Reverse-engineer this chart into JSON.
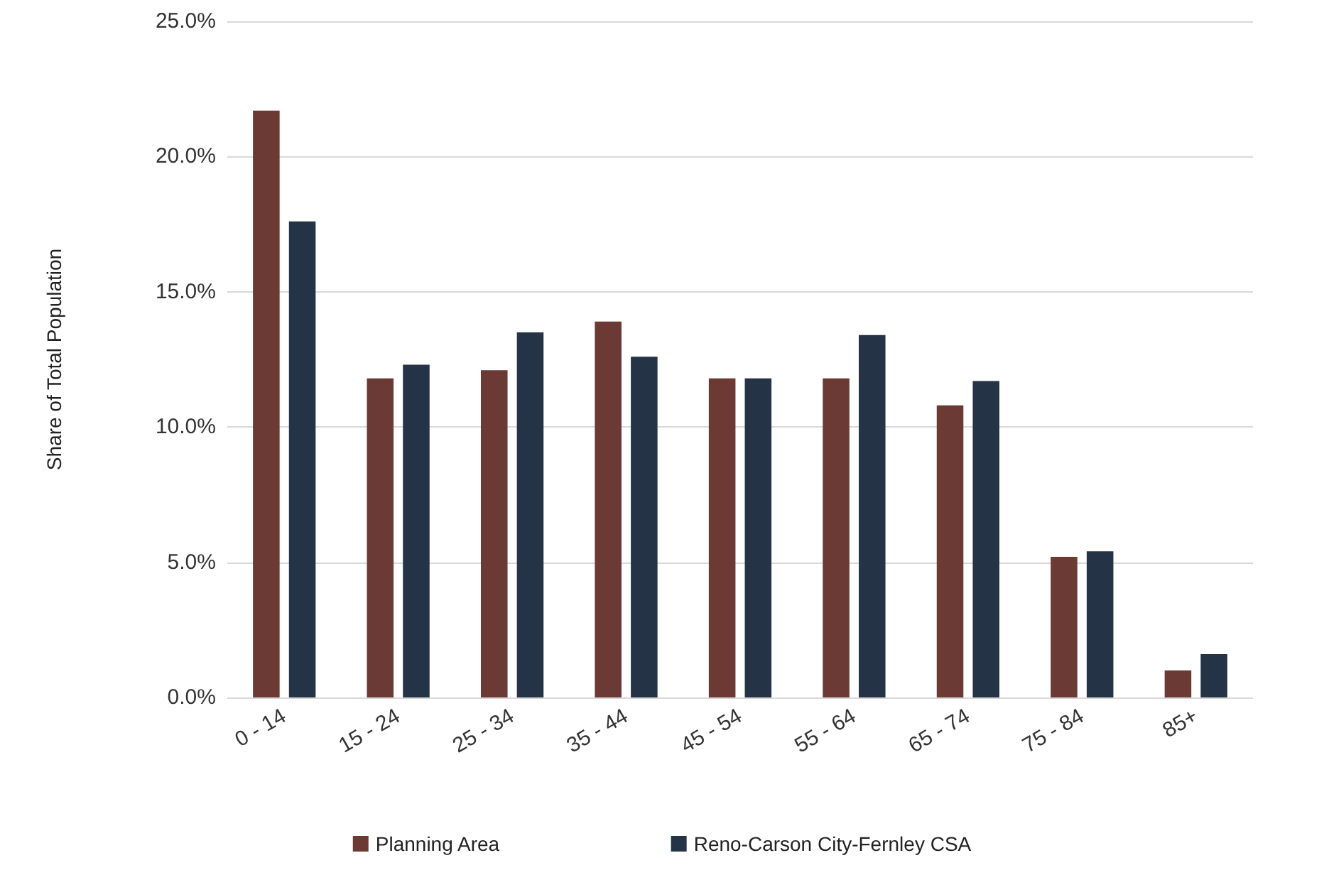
{
  "chart_data": {
    "type": "bar",
    "ylabel": "Share of Total Population",
    "categories": [
      "0 - 14",
      "15 - 24",
      "25 - 34",
      "35 - 44",
      "45 - 54",
      "55 - 64",
      "65 - 74",
      "75 - 84",
      "85+"
    ],
    "series": [
      {
        "name": "Planning Area",
        "color": "#6b3a35",
        "values": [
          21.7,
          11.8,
          12.1,
          13.9,
          11.8,
          11.8,
          10.8,
          5.2,
          1.0
        ]
      },
      {
        "name": "Reno-Carson City-Fernley CSA",
        "color": "#243345",
        "values": [
          17.6,
          12.3,
          13.5,
          12.6,
          11.8,
          13.4,
          11.7,
          5.4,
          1.6
        ]
      }
    ],
    "ylim": [
      0,
      25
    ],
    "yticks": [
      {
        "value": 0,
        "label": "0.0%"
      },
      {
        "value": 5,
        "label": "5.0%"
      },
      {
        "value": 10,
        "label": "10.0%"
      },
      {
        "value": 15,
        "label": "15.0%"
      },
      {
        "value": 20,
        "label": "20.0%"
      },
      {
        "value": 25,
        "label": "25.0%"
      }
    ],
    "grid": "y",
    "legend": "bottom"
  }
}
